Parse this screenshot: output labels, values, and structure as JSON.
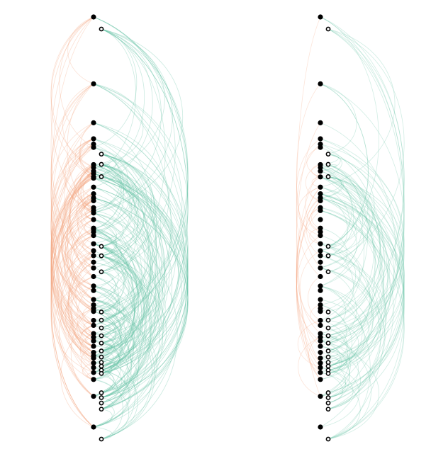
{
  "colors": {
    "background": "#ffffff",
    "link_up": "#f4a582",
    "link_down": "#66c2a5",
    "node_fill": "#000000",
    "node_open_fill": "#ffffff",
    "node_stroke": "#000000"
  },
  "chart_data": {
    "type": "arc-diagram",
    "panels": [
      {
        "id": "left",
        "filled_nodes": [
          0.0,
          0.163,
          0.258,
          0.297,
          0.31,
          0.318,
          0.36,
          0.367,
          0.376,
          0.382,
          0.39,
          0.393,
          0.415,
          0.431,
          0.441,
          0.448,
          0.465,
          0.472,
          0.478,
          0.494,
          0.515,
          0.518,
          0.524,
          0.533,
          0.553,
          0.57,
          0.582,
          0.598,
          0.612,
          0.633,
          0.656,
          0.667,
          0.689,
          0.702,
          0.711,
          0.718,
          0.74,
          0.752,
          0.772,
          0.781,
          0.79,
          0.803,
          0.818,
          0.826,
          0.832,
          0.844,
          0.855,
          0.867,
          0.884,
          0.925,
          1.0
        ],
        "open_nodes": [
          0.0,
          0.305,
          0.33,
          0.36,
          0.53,
          0.553,
          0.592,
          0.69,
          0.71,
          0.729,
          0.748,
          0.766,
          0.785,
          0.8,
          0.813,
          0.822,
          0.832,
          0.84,
          0.887,
          0.899,
          0.912,
          0.927,
          1.0
        ]
      },
      {
        "id": "right",
        "filled_nodes": [
          0.0,
          0.163,
          0.258,
          0.297,
          0.31,
          0.318,
          0.36,
          0.367,
          0.376,
          0.39,
          0.415,
          0.431,
          0.441,
          0.448,
          0.465,
          0.472,
          0.494,
          0.515,
          0.524,
          0.533,
          0.553,
          0.57,
          0.582,
          0.598,
          0.612,
          0.633,
          0.656,
          0.667,
          0.689,
          0.702,
          0.711,
          0.718,
          0.74,
          0.752,
          0.772,
          0.781,
          0.79,
          0.803,
          0.818,
          0.832,
          0.844,
          0.855,
          0.867,
          0.884,
          0.925,
          1.0
        ],
        "open_nodes": [
          0.0,
          0.305,
          0.33,
          0.36,
          0.53,
          0.553,
          0.592,
          0.69,
          0.71,
          0.729,
          0.748,
          0.766,
          0.785,
          0.8,
          0.813,
          0.822,
          0.832,
          0.84,
          0.887,
          0.899,
          0.912,
          0.927,
          1.0
        ]
      }
    ]
  }
}
